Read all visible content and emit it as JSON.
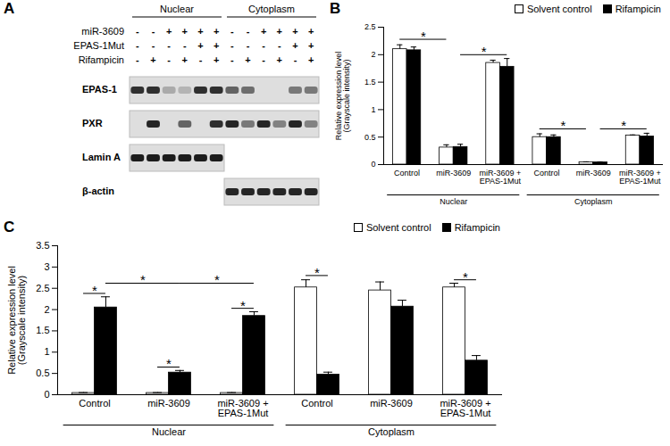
{
  "blot": {
    "panel": "A",
    "sections": [
      {
        "label": "Nuclear",
        "lanes": 6
      },
      {
        "label": "Cytoplasm",
        "lanes": 6
      }
    ],
    "treatments": [
      {
        "label": "miR-3609",
        "signs": [
          "-",
          "-",
          "+",
          "+",
          "+",
          "+",
          "-",
          "-",
          "+",
          "+",
          "+",
          "+"
        ]
      },
      {
        "label": "EPAS-1Mut",
        "signs": [
          "-",
          "-",
          "-",
          "-",
          "+",
          "+",
          "-",
          "-",
          "-",
          "-",
          "+",
          "+"
        ]
      },
      {
        "label": "Rifampicin",
        "signs": [
          "-",
          "+",
          "-",
          "+",
          "-",
          "+",
          "-",
          "+",
          "-",
          "+",
          "-",
          "+"
        ]
      }
    ],
    "bands": [
      {
        "label": "EPAS-1",
        "intensity": [
          0.85,
          0.85,
          0.25,
          0.2,
          0.85,
          0.85,
          0.6,
          0.55,
          0,
          0,
          0.5,
          0.5
        ]
      },
      {
        "label": "PXR",
        "intensity": [
          0,
          0.9,
          0,
          0.6,
          0,
          0.85,
          0.9,
          0.5,
          0.9,
          0.45,
          0.9,
          0.45
        ]
      },
      {
        "label": "Lamin A",
        "intensity": [
          0.95,
          0.95,
          0.95,
          0.95,
          0.95,
          0.95,
          null,
          null,
          null,
          null,
          null,
          null
        ]
      },
      {
        "label": "β-actin",
        "intensity": [
          null,
          null,
          null,
          null,
          null,
          null,
          0.9,
          0.9,
          0.9,
          0.9,
          0.9,
          0.9
        ]
      }
    ]
  },
  "chart_data": [
    {
      "type": "bar",
      "panel": "B",
      "ylabel": "Relative expression level\n(Grayscale intensity)",
      "categories": [
        "Control",
        "miR-3609",
        "miR-3609 +\nEPAS-1Mut",
        "Control",
        "miR-3609",
        "miR-3609 +\nEPAS-1Mut"
      ],
      "groups": [
        {
          "label": "Nuclear",
          "from": 0,
          "to": 2
        },
        {
          "label": "Cytoplasm",
          "from": 3,
          "to": 5
        }
      ],
      "series": [
        {
          "name": "Solvent control",
          "color": "#ffffff",
          "values": [
            2.1,
            0.31,
            1.85,
            0.5,
            0.04,
            0.53
          ],
          "errors": [
            0.08,
            0.05,
            0.05,
            0.06,
            0.01,
            0.01
          ]
        },
        {
          "name": "Rifampicin",
          "color": "#000000",
          "values": [
            2.08,
            0.32,
            1.78,
            0.5,
            0.04,
            0.51
          ],
          "errors": [
            0.06,
            0.05,
            0.15,
            0.04,
            0.01,
            0.06
          ]
        }
      ],
      "ylim": [
        0,
        2.5
      ],
      "yticks": [
        0,
        0.5,
        1,
        1.5,
        2,
        2.5
      ],
      "legend": "top-right",
      "significance": [
        {
          "label": "*",
          "from": [
            0,
            0
          ],
          "to": [
            1,
            0
          ],
          "y": 2.28
        },
        {
          "label": "*",
          "from": [
            1,
            1
          ],
          "to": [
            2,
            1
          ],
          "y": 2.0
        },
        {
          "label": "*",
          "from": [
            3,
            0
          ],
          "to": [
            4,
            0
          ],
          "y": 0.65
        },
        {
          "label": "*",
          "from": [
            4,
            1
          ],
          "to": [
            5,
            1
          ],
          "y": 0.65
        }
      ]
    },
    {
      "type": "bar",
      "panel": "C",
      "ylabel": "Relative expression level\n(Grayscale intensity)",
      "categories": [
        "Control",
        "miR-3609",
        "miR-3609 +\nEPAS-1Mut",
        "Control",
        "miR-3609",
        "miR-3609 +\nEPAS-1Mut"
      ],
      "groups": [
        {
          "label": "Nuclear",
          "from": 0,
          "to": 2
        },
        {
          "label": "Cytoplasm",
          "from": 3,
          "to": 5
        }
      ],
      "series": [
        {
          "name": "Solvent control",
          "color": "#ffffff",
          "values": [
            0.04,
            0.04,
            0.04,
            2.52,
            2.45,
            2.52
          ],
          "errors": [
            0.01,
            0.01,
            0.01,
            0.18,
            0.2,
            0.1
          ]
        },
        {
          "name": "Rifampicin",
          "color": "#000000",
          "values": [
            2.05,
            0.52,
            1.85,
            0.47,
            2.07,
            0.8
          ],
          "errors": [
            0.25,
            0.05,
            0.1,
            0.06,
            0.15,
            0.12
          ]
        }
      ],
      "ylim": [
        0,
        3.5
      ],
      "yticks": [
        0,
        0.5,
        1,
        1.5,
        2,
        2.5,
        3,
        3.5
      ],
      "legend": "top-right",
      "significance": [
        {
          "label": "*",
          "from": [
            0,
            0
          ],
          "to": [
            0,
            1
          ],
          "y": 2.38
        },
        {
          "label": "*",
          "from": [
            1,
            0
          ],
          "to": [
            1,
            1
          ],
          "y": 0.65
        },
        {
          "label": "*",
          "from": [
            2,
            0
          ],
          "to": [
            2,
            1
          ],
          "y": 2.03
        },
        {
          "label": "*",
          "from": [
            0,
            1
          ],
          "to": [
            1,
            1
          ],
          "y": 2.62
        },
        {
          "label": "*",
          "from": [
            1,
            1
          ],
          "to": [
            2,
            1
          ],
          "y": 2.62
        },
        {
          "label": "*",
          "from": [
            3,
            0
          ],
          "to": [
            3,
            1
          ],
          "y": 2.8
        },
        {
          "label": "*",
          "from": [
            5,
            0
          ],
          "to": [
            5,
            1
          ],
          "y": 2.7
        }
      ]
    }
  ]
}
